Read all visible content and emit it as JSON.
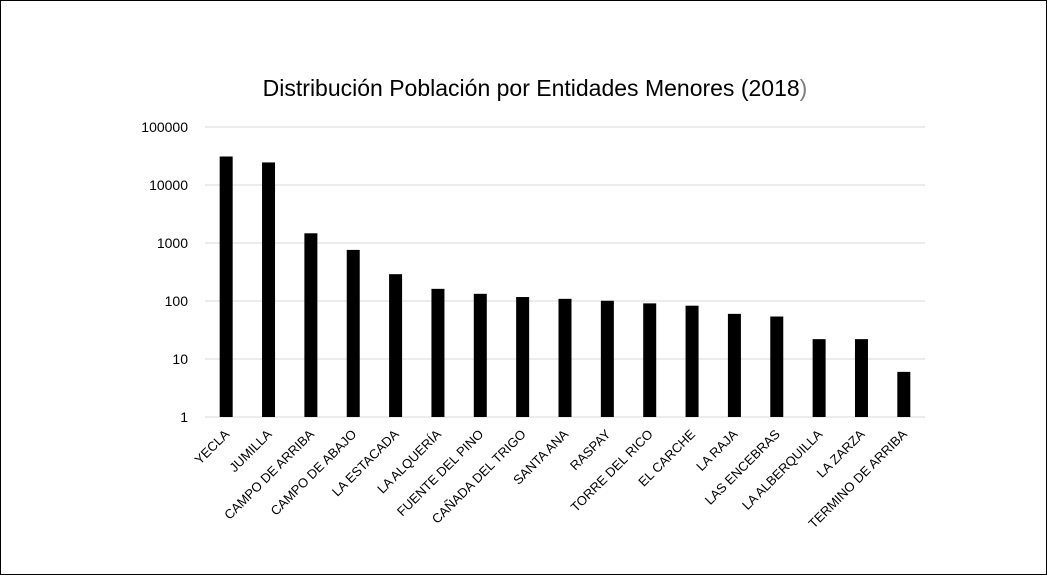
{
  "chart_data": {
    "type": "bar",
    "title": "Distribución Población por Entidades Menores (2018",
    "title_close": ")",
    "xlabel": "",
    "ylabel": "",
    "yscale": "log",
    "ylim": [
      1,
      100000
    ],
    "ytick_values": [
      1,
      10,
      100,
      1000,
      10000,
      100000
    ],
    "yticks": [
      "1",
      "10",
      "100",
      "1000",
      "10000",
      "100000"
    ],
    "grid": true,
    "bar_color": "#000000",
    "grid_color": "#d9d9d9",
    "categories": [
      "YECLA",
      "JUMILLA",
      "CAMPO DE ARRIBA",
      "CAMPO DE ABAJO",
      "LA ESTACADA",
      "LA ALQUERÍA",
      "FUENTE DEL PINO",
      "CAÑADA DEL TRIGO",
      "SANTA ANA",
      "RASPAY",
      "TORRE DEL RICO",
      "EL CARCHE",
      "LA RAJA",
      "LAS ENCEBRAS",
      "LA ALBERQUILLA",
      "LA ZARZA",
      "TERMINO DE ARRIBA"
    ],
    "values": [
      31000,
      24500,
      1470,
      760,
      290,
      162,
      133,
      117,
      109,
      101,
      91,
      83,
      60,
      54,
      22,
      22,
      6
    ]
  }
}
